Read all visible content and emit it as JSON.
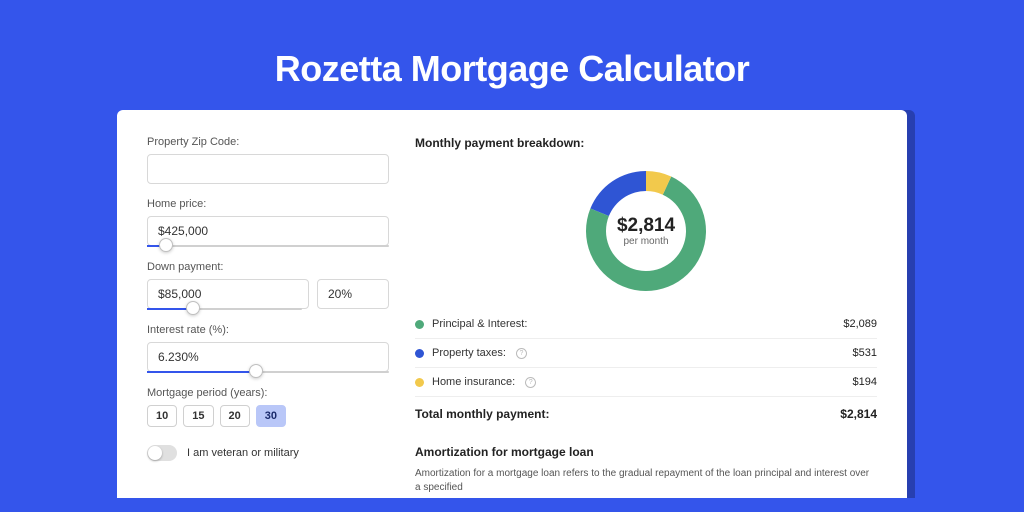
{
  "page": {
    "title": "Rozetta Mortgage Calculator",
    "background_color": "#3455eb",
    "card_background": "#ffffff"
  },
  "form": {
    "zip": {
      "label": "Property Zip Code:",
      "value": ""
    },
    "home_price": {
      "label": "Home price:",
      "value": "$425,000",
      "slider_pct": 8
    },
    "down_payment": {
      "label": "Down payment:",
      "value": "$85,000",
      "pct_value": "20%",
      "slider_pct": 30
    },
    "interest_rate": {
      "label": "Interest rate (%):",
      "value": "6.230%",
      "slider_pct": 45
    },
    "mortgage_period": {
      "label": "Mortgage period (years):",
      "options": [
        "10",
        "15",
        "20",
        "30"
      ],
      "selected": "30"
    },
    "veteran": {
      "label": "I am veteran or military",
      "on": false
    }
  },
  "breakdown": {
    "title": "Monthly payment breakdown:",
    "donut": {
      "center_amount": "$2,814",
      "center_sub": "per month",
      "slices": [
        {
          "label": "Principal & Interest:",
          "value": "$2,089",
          "color": "#4fa97a",
          "fraction": 0.742
        },
        {
          "label": "Property taxes:",
          "value": "$531",
          "color": "#2f55d4",
          "fraction": 0.189,
          "info": true
        },
        {
          "label": "Home insurance:",
          "value": "$194",
          "color": "#f2c94c",
          "fraction": 0.069,
          "info": true
        }
      ]
    },
    "total": {
      "label": "Total monthly payment:",
      "value": "$2,814"
    }
  },
  "amortization": {
    "title": "Amortization for mortgage loan",
    "body": "Amortization for a mortgage loan refers to the gradual repayment of the loan principal and interest over a specified"
  },
  "colors": {
    "accent": "#3455eb",
    "input_border": "#d8d8d8",
    "text_muted": "#555555"
  }
}
